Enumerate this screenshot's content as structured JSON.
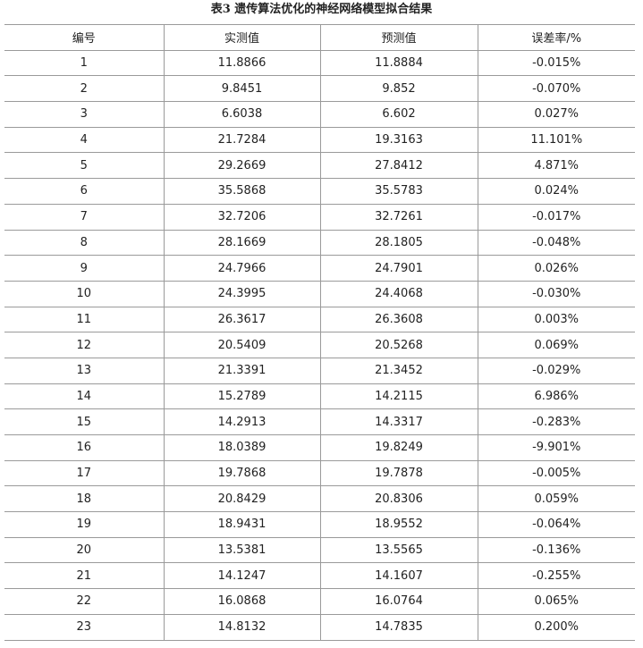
{
  "title": "表3 遗传算法优化的神经网络模型拟合结果",
  "columns": [
    "编号",
    "实测值",
    "预测值",
    "误差率/%"
  ],
  "rows": [
    [
      "1",
      "11.8866",
      "11.8884",
      "-0.015%"
    ],
    [
      "2",
      "9.8451",
      "9.852",
      "-0.070%"
    ],
    [
      "3",
      "6.6038",
      "6.602",
      "0.027%"
    ],
    [
      "4",
      "21.7284",
      "19.3163",
      "11.101%"
    ],
    [
      "5",
      "29.2669",
      "27.8412",
      "4.871%"
    ],
    [
      "6",
      "35.5868",
      "35.5783",
      "0.024%"
    ],
    [
      "7",
      "32.7206",
      "32.7261",
      "-0.017%"
    ],
    [
      "8",
      "28.1669",
      "28.1805",
      "-0.048%"
    ],
    [
      "9",
      "24.7966",
      "24.7901",
      "0.026%"
    ],
    [
      "10",
      "24.3995",
      "24.4068",
      "-0.030%"
    ],
    [
      "11",
      "26.3617",
      "26.3608",
      "0.003%"
    ],
    [
      "12",
      "20.5409",
      "20.5268",
      "0.069%"
    ],
    [
      "13",
      "21.3391",
      "21.3452",
      "-0.029%"
    ],
    [
      "14",
      "15.2789",
      "14.2115",
      "6.986%"
    ],
    [
      "15",
      "14.2913",
      "14.3317",
      "-0.283%"
    ],
    [
      "16",
      "18.0389",
      "19.8249",
      "-9.901%"
    ],
    [
      "17",
      "19.7868",
      "19.7878",
      "-0.005%"
    ],
    [
      "18",
      "20.8429",
      "20.8306",
      "0.059%"
    ],
    [
      "19",
      "18.9431",
      "18.9552",
      "-0.064%"
    ],
    [
      "20",
      "13.5381",
      "13.5565",
      "-0.136%"
    ],
    [
      "21",
      "14.1247",
      "14.1607",
      "-0.255%"
    ],
    [
      "22",
      "16.0868",
      "16.0764",
      "0.065%"
    ],
    [
      "23",
      "14.8132",
      "14.7835",
      "0.200%"
    ]
  ]
}
